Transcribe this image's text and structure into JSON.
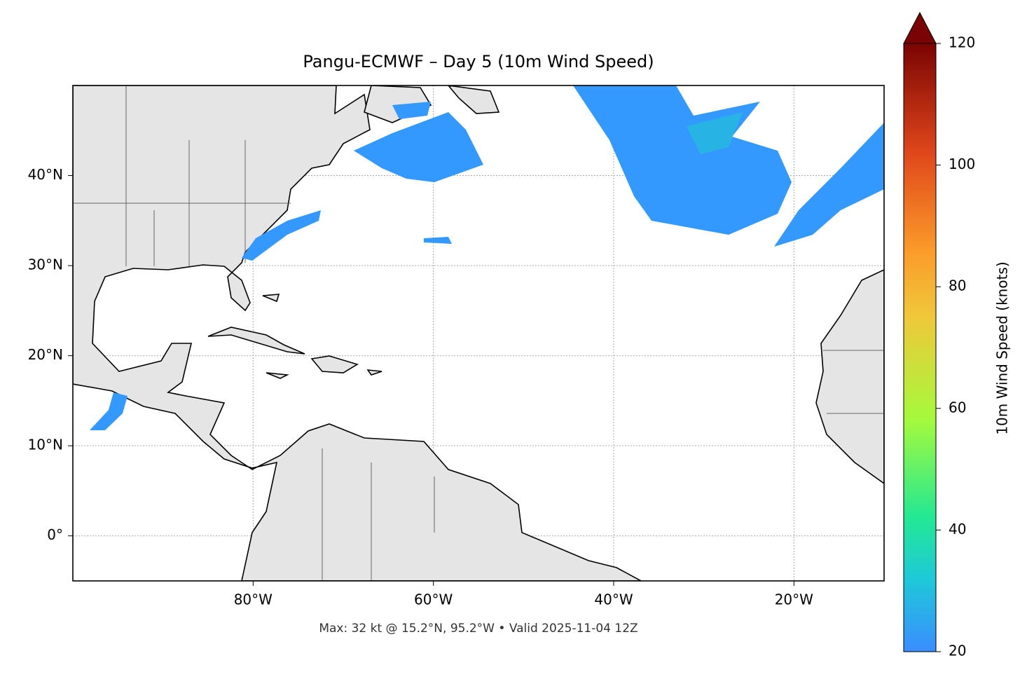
{
  "chart_data": {
    "type": "map",
    "title": "Pangu-ECMWF – Day 5 (10m Wind Speed)",
    "footnote": "Max: 32 kt @ 15.2°N, 95.2°W • Valid 2025-11-04 12Z",
    "xlim": [
      -100,
      -10
    ],
    "ylim": [
      -5,
      50
    ],
    "xticks": [
      {
        "value": -80,
        "label": "80°W"
      },
      {
        "value": -60,
        "label": "60°W"
      },
      {
        "value": -40,
        "label": "40°W"
      },
      {
        "value": -20,
        "label": "20°W"
      }
    ],
    "yticks": [
      {
        "value": 0,
        "label": "0°"
      },
      {
        "value": 10,
        "label": "10°N"
      },
      {
        "value": 20,
        "label": "20°N"
      },
      {
        "value": 30,
        "label": "30°N"
      },
      {
        "value": 40,
        "label": "40°N"
      }
    ],
    "grid": true,
    "colorbar": {
      "label": "10m Wind Speed (knots)",
      "lim": [
        20,
        120
      ],
      "ticks": [
        20,
        40,
        60,
        80,
        100,
        120
      ]
    }
  }
}
